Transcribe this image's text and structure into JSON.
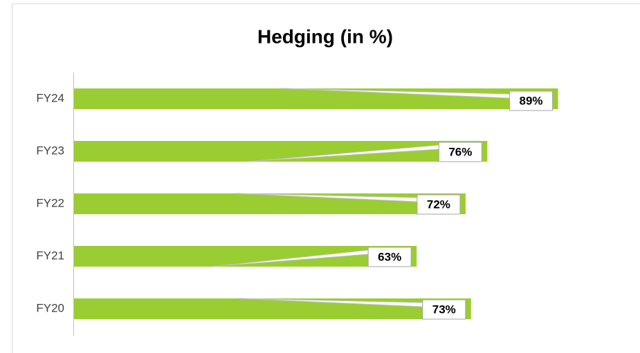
{
  "chart_data": {
    "type": "bar",
    "orientation": "horizontal",
    "title": "Hedging (in %)",
    "categories": [
      "FY24",
      "FY23",
      "FY22",
      "FY21",
      "FY20"
    ],
    "values": [
      89,
      76,
      72,
      63,
      73
    ],
    "value_labels": [
      "89%",
      "76%",
      "72%",
      "63%",
      "73%"
    ],
    "color": "#9acd32",
    "xlim": [
      0,
      100
    ]
  }
}
